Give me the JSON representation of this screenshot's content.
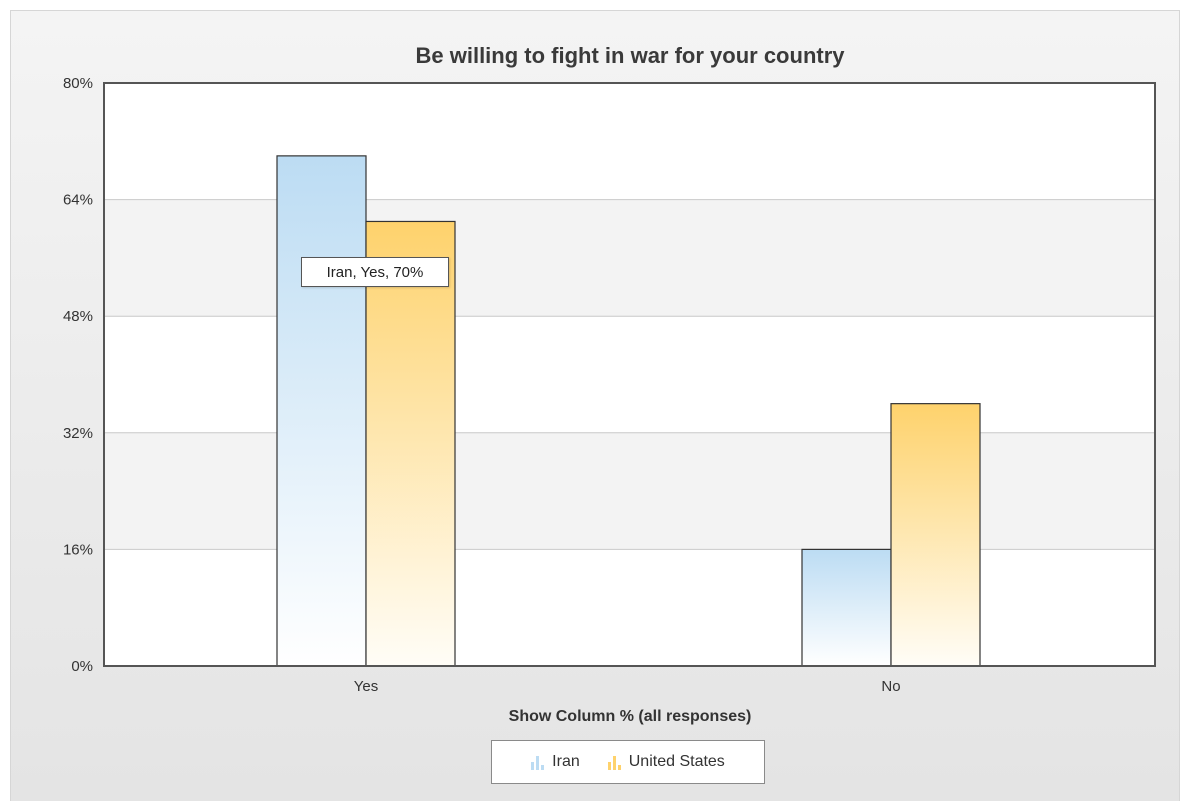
{
  "chart_data": {
    "type": "bar",
    "title": "Be willing to fight in war for your country",
    "xlabel": "Show Column % (all responses)",
    "ylabel": "",
    "categories": [
      "Yes",
      "No"
    ],
    "series": [
      {
        "name": "Iran",
        "values": [
          70,
          16
        ],
        "color": "#bcdcf3"
      },
      {
        "name": "United States",
        "values": [
          61,
          36
        ],
        "color": "#fed26c"
      }
    ],
    "ylim": [
      0,
      80
    ],
    "yticks": [
      0,
      16,
      32,
      48,
      64,
      80
    ],
    "ytick_labels": [
      "0%",
      "16%",
      "32%",
      "48%",
      "64%",
      "80%"
    ],
    "legend_position": "bottom",
    "grid": true
  },
  "tooltip": {
    "text": "Iran, Yes, 70%"
  },
  "colors": {
    "iran": "#bcdcf3",
    "united_states": "#fed26c",
    "axis": "#555555"
  }
}
